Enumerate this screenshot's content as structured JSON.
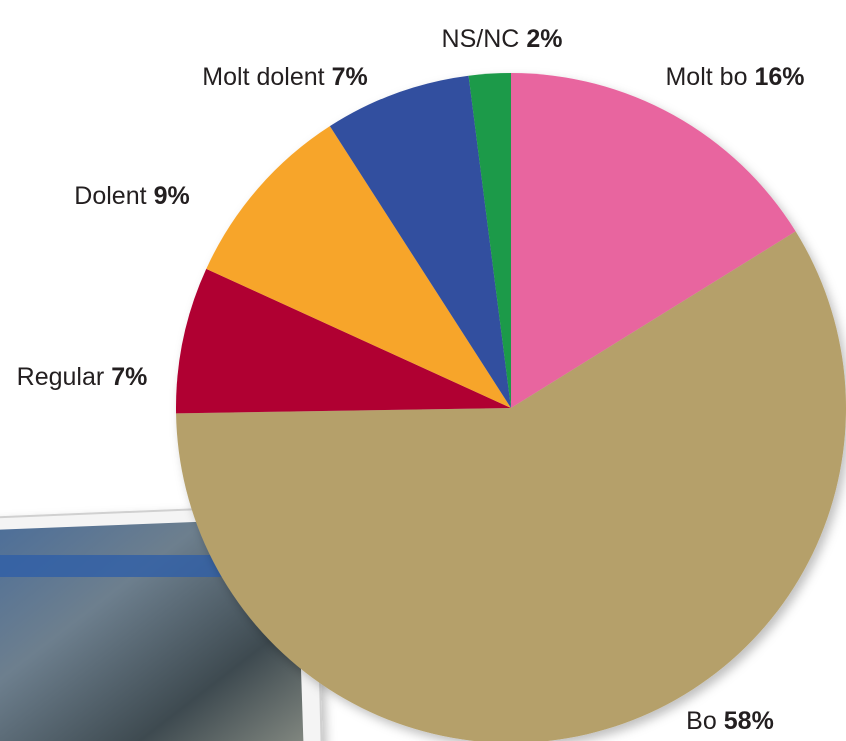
{
  "chart_data": {
    "type": "pie",
    "categories": [
      "Molt bo",
      "Bo",
      "Regular",
      "Dolent",
      "Molt dolent",
      "NS/NC"
    ],
    "values": [
      16,
      58,
      7,
      9,
      7,
      2
    ],
    "value_labels": [
      "16%",
      "58%",
      "7%",
      "9%",
      "7%",
      "2%"
    ],
    "colors": [
      "#e8659f",
      "#b5a06a",
      "#b00333",
      "#f7a52b",
      "#334f9f",
      "#1c9a49"
    ]
  }
}
